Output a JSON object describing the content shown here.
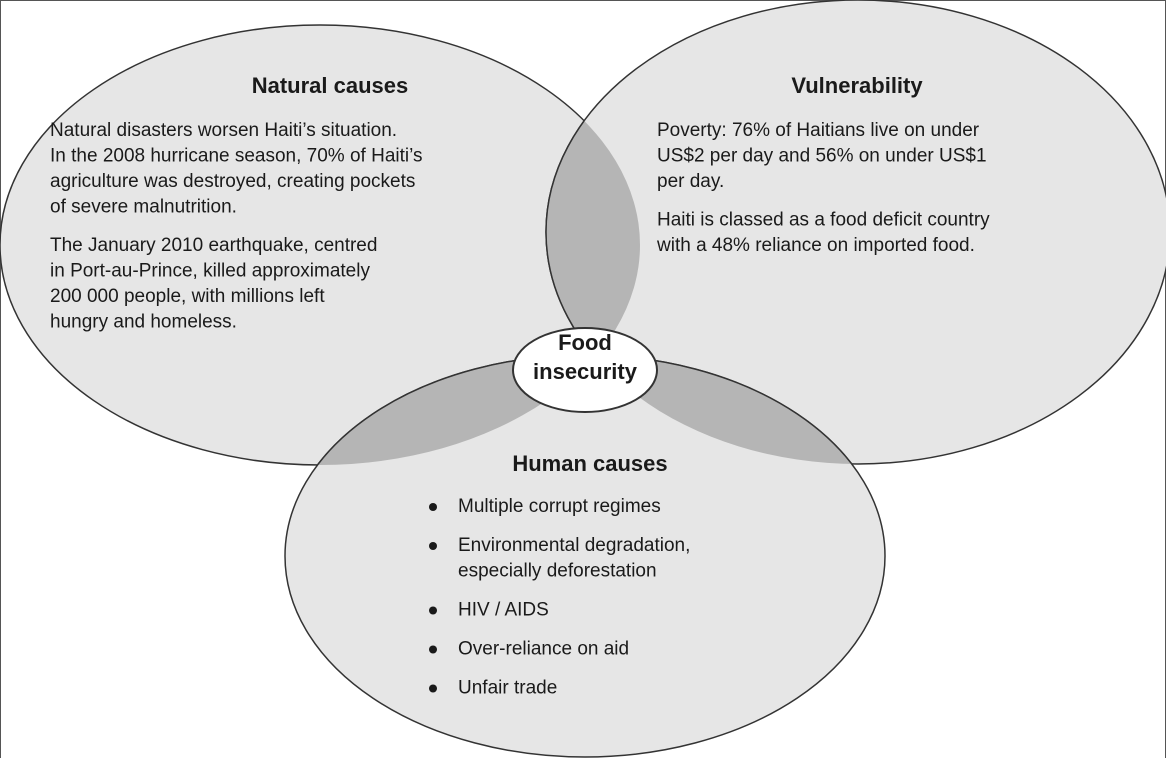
{
  "natural": {
    "title": "Natural causes",
    "paragraphs": [
      [
        "Natural disasters worsen Haiti’s situation.",
        "In the 2008 hurricane season, 70% of Haiti’s",
        "agriculture was destroyed, creating pockets",
        "of severe malnutrition."
      ],
      [
        "The January 2010 earthquake, centred",
        "in Port-au-Prince, killed approximately",
        "200 000 people, with millions left",
        "hungry and homeless."
      ]
    ]
  },
  "vulnerability": {
    "title": "Vulnerability",
    "paragraphs": [
      [
        "Poverty: 76% of Haitians live on under",
        "US$2 per day and 56% on under US$1",
        "per day."
      ],
      [
        "Haiti is classed as a food deficit country",
        "with a 48% reliance on imported food."
      ]
    ]
  },
  "center": {
    "lines": [
      "Food",
      "insecurity"
    ]
  },
  "human": {
    "title": "Human causes",
    "items": [
      [
        "Multiple corrupt regimes"
      ],
      [
        "Environmental degradation,",
        "especially deforestation"
      ],
      [
        "HIV / AIDS"
      ],
      [
        "Over-reliance on aid"
      ],
      [
        "Unfair trade"
      ]
    ]
  }
}
